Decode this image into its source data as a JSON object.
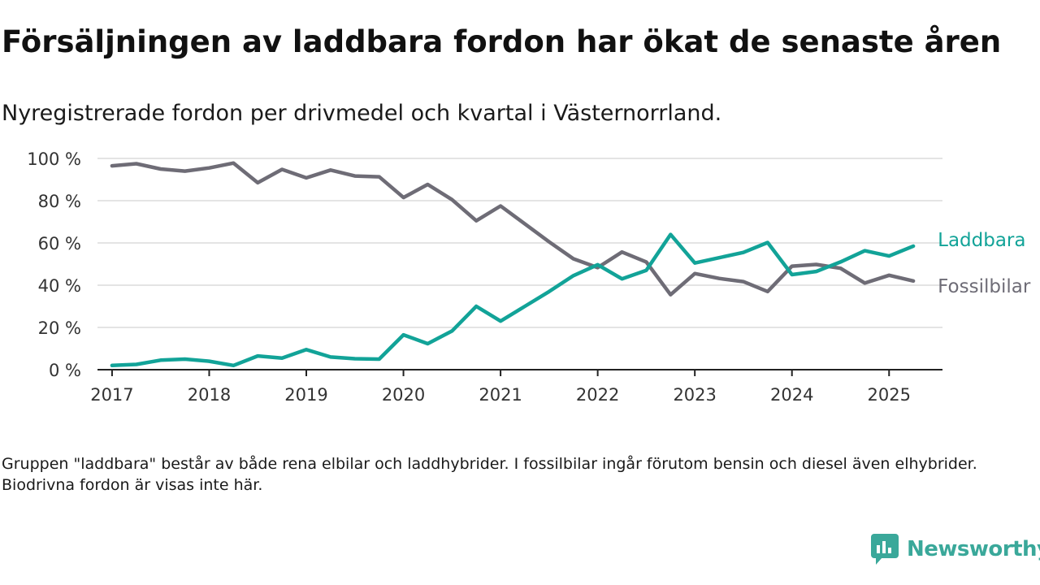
{
  "title": "Försäljningen av laddbara fordon har ökat de senaste åren",
  "subtitle": "Nyregistrerade fordon per drivmedel och kvartal i Västernorrland.",
  "note": "Gruppen \"laddbara\" består av både rena elbilar och laddhybrider. I fossilbilar ingår förutom bensin och diesel även elhybrider. Biodrivna fordon är visas inte här.",
  "brand": {
    "name": "Newsworthy",
    "icon": "newsworthy-logo-icon",
    "color": "#3aa89a"
  },
  "chart_data": {
    "type": "line",
    "x_tick_labels": [
      "2017",
      "2018",
      "2019",
      "2020",
      "2021",
      "2022",
      "2023",
      "2024",
      "2025"
    ],
    "y_tick_labels": [
      "0 %",
      "20 %",
      "40 %",
      "60 %",
      "80 %",
      "100 %"
    ],
    "ylim": [
      0,
      100
    ],
    "grid": true,
    "x": [
      2017.0,
      2017.25,
      2017.5,
      2017.75,
      2018.0,
      2018.25,
      2018.5,
      2018.75,
      2019.0,
      2019.25,
      2019.5,
      2019.75,
      2020.0,
      2020.25,
      2020.5,
      2020.75,
      2021.0,
      2021.25,
      2021.5,
      2021.75,
      2022.0,
      2022.25,
      2022.5,
      2022.75,
      2023.0,
      2023.25,
      2023.5,
      2023.75,
      2024.0,
      2024.25,
      2024.5,
      2024.75,
      2025.0,
      2025.25
    ],
    "series": [
      {
        "name": "Fossilbilar",
        "color": "#6e6c76",
        "values": [
          96.5,
          97.5,
          95,
          94,
          95.5,
          97.8,
          88.5,
          94.8,
          90.8,
          94.5,
          91.7,
          91.3,
          81.5,
          87.7,
          80.5,
          70.5,
          77.5,
          69,
          60.5,
          52.5,
          48.3,
          55.7,
          51,
          35.5,
          45.5,
          43.2,
          41.7,
          37,
          49,
          49.8,
          48,
          41,
          44.7,
          42
        ]
      },
      {
        "name": "Laddbara",
        "color": "#12a398",
        "values": [
          2,
          2.5,
          4.5,
          5,
          4,
          2,
          6.5,
          5.5,
          9.5,
          6,
          5.2,
          5,
          16.5,
          12.3,
          18.3,
          30,
          23,
          30,
          37,
          44.5,
          49.7,
          43,
          47,
          64,
          50.5,
          53,
          55.5,
          60.2,
          45,
          46.5,
          51,
          56.3,
          53.8,
          58.5
        ]
      }
    ]
  }
}
